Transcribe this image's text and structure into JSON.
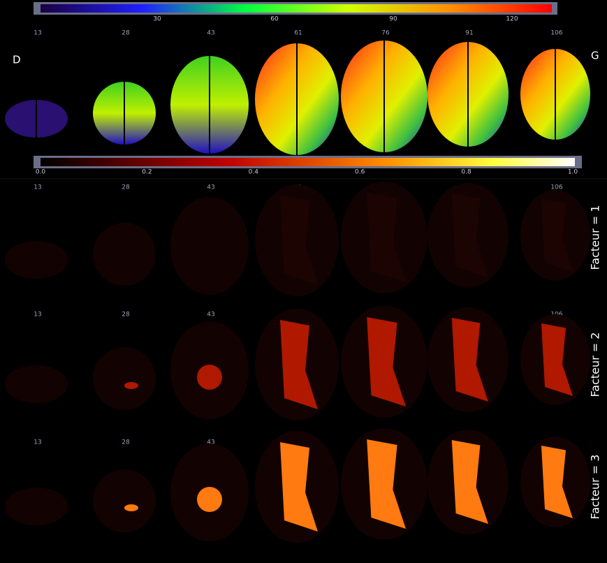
{
  "side_labels": {
    "left": "D",
    "right": "G"
  },
  "top_colorbar": {
    "ticks": [
      "30",
      "60",
      "90",
      "120"
    ]
  },
  "bottom_colorbar": {
    "ticks": [
      "0.0",
      "0.2",
      "0.4",
      "0.6",
      "0.8",
      "1.0"
    ]
  },
  "slices": [
    "13",
    "28",
    "43",
    "61",
    "76",
    "91",
    "106"
  ],
  "rows": [
    {
      "label": "Facteur = 1"
    },
    {
      "label": "Facteur = 2"
    },
    {
      "label": "Facteur = 3"
    }
  ]
}
